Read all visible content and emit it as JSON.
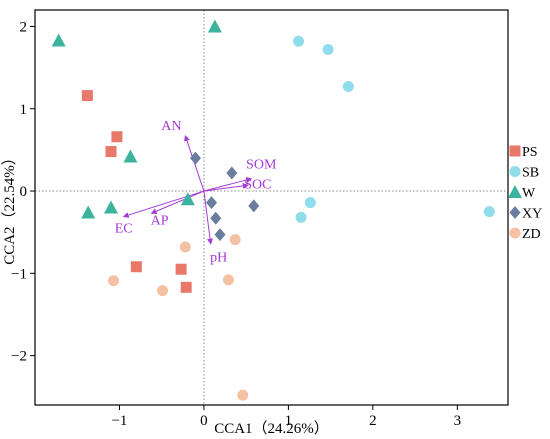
{
  "chart_data": {
    "type": "scatter",
    "xlabel": "CCA1（24.26%）",
    "ylabel": "CCA2（22.54%）",
    "xlim": [
      -2.0,
      3.6
    ],
    "ylim": [
      -2.6,
      2.2
    ],
    "x_ticks": [
      "−1",
      "0",
      "1",
      "2",
      "3"
    ],
    "y_ticks": [
      "2",
      "1",
      "0",
      "−1",
      "−2"
    ],
    "x_tick_values": [
      -1,
      0,
      1,
      2,
      3
    ],
    "y_tick_values": [
      2,
      1,
      0,
      -1,
      -2
    ],
    "reference_lines": {
      "x": 0,
      "y": 0,
      "style": "dotted"
    },
    "legend_position": "right",
    "arrow_color": "#a43ad8",
    "series": [
      {
        "name": "PS",
        "marker": "square",
        "color": "#e8786a",
        "points": [
          [
            -1.38,
            1.16
          ],
          [
            -1.03,
            0.66
          ],
          [
            -1.1,
            0.48
          ],
          [
            -0.8,
            -0.92
          ],
          [
            -0.27,
            -0.95
          ],
          [
            -0.21,
            -1.17
          ]
        ]
      },
      {
        "name": "SB",
        "marker": "circle",
        "color": "#8fdcea",
        "points": [
          [
            1.12,
            1.82
          ],
          [
            1.47,
            1.72
          ],
          [
            1.71,
            1.27
          ],
          [
            1.26,
            -0.14
          ],
          [
            1.15,
            -0.32
          ],
          [
            3.38,
            -0.25
          ]
        ]
      },
      {
        "name": "W",
        "marker": "triangle",
        "color": "#3bb39d",
        "points": [
          [
            -1.72,
            1.83
          ],
          [
            0.13,
            2.0
          ],
          [
            -0.87,
            0.42
          ],
          [
            -1.1,
            -0.2
          ],
          [
            -1.37,
            -0.26
          ],
          [
            -0.19,
            -0.1
          ]
        ]
      },
      {
        "name": "XY",
        "marker": "diamond",
        "color": "#6a7d9f",
        "points": [
          [
            -0.1,
            0.4
          ],
          [
            0.33,
            0.22
          ],
          [
            0.59,
            -0.18
          ],
          [
            0.09,
            -0.14
          ],
          [
            0.14,
            -0.33
          ],
          [
            0.19,
            -0.53
          ]
        ]
      },
      {
        "name": "ZD",
        "marker": "circle",
        "color": "#f5c1a3",
        "points": [
          [
            -0.22,
            -0.68
          ],
          [
            0.37,
            -0.59
          ],
          [
            0.29,
            -1.08
          ],
          [
            -1.07,
            -1.09
          ],
          [
            -0.49,
            -1.21
          ],
          [
            0.46,
            -2.48
          ]
        ]
      }
    ],
    "arrows": [
      {
        "label": "AN",
        "x": -0.22,
        "y": 0.67
      },
      {
        "label": "SOM",
        "x": 0.56,
        "y": 0.15
      },
      {
        "label": "SOC",
        "x": 0.52,
        "y": 0.07
      },
      {
        "label": "EC",
        "x": -0.95,
        "y": -0.31
      },
      {
        "label": "AP",
        "x": -0.62,
        "y": -0.27
      },
      {
        "label": "pH",
        "x": 0.08,
        "y": -0.64
      }
    ]
  }
}
